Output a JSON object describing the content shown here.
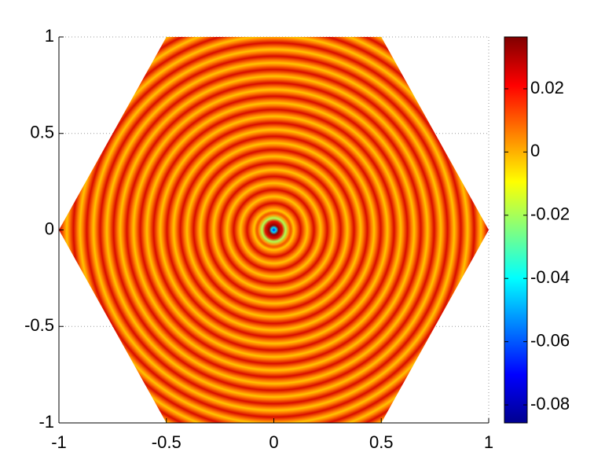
{
  "chart_data": {
    "type": "heatmap",
    "xlim": [
      -1,
      1
    ],
    "ylim": [
      -1,
      1
    ],
    "xticks": [
      -1,
      -0.5,
      0,
      0.5,
      1
    ],
    "yticks": [
      -1,
      -0.5,
      0,
      0.5,
      1
    ],
    "grid": true,
    "colormap": [
      "#00008f",
      "#0000ff",
      "#0080ff",
      "#00ffff",
      "#80ff80",
      "#ffff00",
      "#ff8000",
      "#ff0000",
      "#800000"
    ],
    "clim": [
      -0.0857,
      0.0364
    ],
    "cticks": [
      -0.08,
      -0.06,
      -0.04,
      -0.02,
      0,
      0.02
    ]
  }
}
